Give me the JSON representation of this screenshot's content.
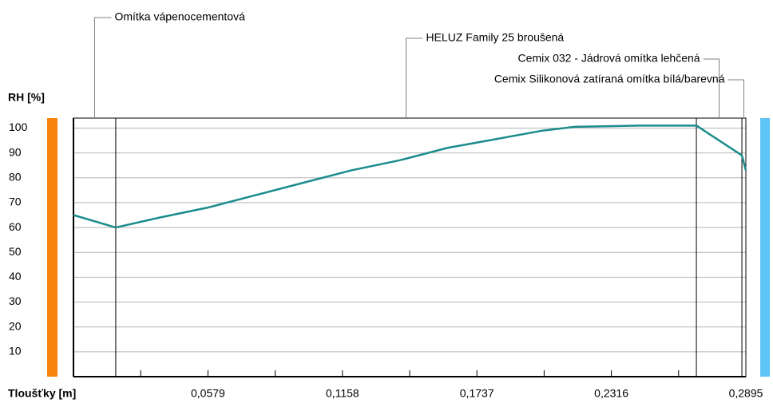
{
  "chart_data": {
    "type": "line",
    "ylabel": "RH [%]",
    "xlabel": "Tloušťky [m]",
    "xlim": [
      0,
      0.2895
    ],
    "ylim": [
      0,
      104
    ],
    "yticks": [
      10,
      20,
      30,
      40,
      50,
      60,
      70,
      80,
      90,
      100
    ],
    "xticks": [
      {
        "value": 0.0579,
        "label": "0,0579"
      },
      {
        "value": 0.1158,
        "label": "0,1158"
      },
      {
        "value": 0.1737,
        "label": "0,1737"
      },
      {
        "value": 0.2316,
        "label": "0,2316"
      },
      {
        "value": 0.2895,
        "label": "0,2895"
      }
    ],
    "xminorticks": [
      0.02895,
      0.08685,
      0.14475,
      0.20265,
      0.26055
    ],
    "grid": true,
    "layers": [
      {
        "name": "Omítka vápenocementová",
        "from": 0,
        "to": 0.0182
      },
      {
        "name": "HELUZ Family 25 broušená",
        "from": 0.0182,
        "to": 0.2682
      },
      {
        "name": "Cemix 032 - Jádrová omítka lehčená",
        "from": 0.2682,
        "to": 0.2878
      },
      {
        "name": "Cemix Silikonová zatíraná omítka bílá/barevná",
        "from": 0.2878,
        "to": 0.2895
      }
    ],
    "x": [
      0,
      0.0182,
      0.0371,
      0.0578,
      0.0784,
      0.099,
      0.1197,
      0.1403,
      0.1609,
      0.1816,
      0.2022,
      0.216,
      0.2435,
      0.2682,
      0.2878,
      0.2895
    ],
    "series": [
      {
        "name": "RH",
        "color": "#1b8c8c",
        "values": [
          65,
          60,
          64,
          68,
          73,
          78,
          83,
          87,
          92,
          95.5,
          99,
          100.5,
          101,
          101,
          89,
          83
        ]
      }
    ]
  }
}
